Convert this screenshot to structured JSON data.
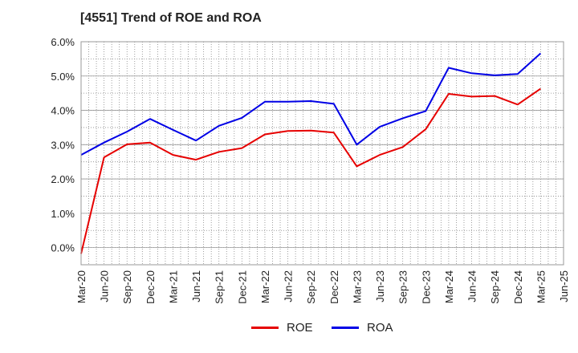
{
  "title": "[4551]  Trend of ROE and ROA",
  "chart_data": {
    "type": "line",
    "title": "[4551]  Trend of ROE and ROA",
    "x": [
      "Mar-20",
      "Jun-20",
      "Sep-20",
      "Dec-20",
      "Mar-21",
      "Jun-21",
      "Sep-21",
      "Dec-21",
      "Mar-22",
      "Jun-22",
      "Sep-22",
      "Dec-22",
      "Mar-23",
      "Jun-23",
      "Sep-23",
      "Dec-23",
      "Mar-24",
      "Jun-24",
      "Sep-24",
      "Dec-24",
      "Mar-25",
      "Jun-25"
    ],
    "ylim": [
      -0.5,
      6.0
    ],
    "yticks": [
      "0.0%",
      "1.0%",
      "2.0%",
      "3.0%",
      "4.0%",
      "5.0%",
      "6.0%"
    ],
    "ytick_values": [
      0,
      1,
      2,
      3,
      4,
      5,
      6
    ],
    "grid": true,
    "legend_position": "bottom",
    "series": [
      {
        "name": "ROE",
        "color": "#e60000",
        "values": [
          -0.18,
          2.63,
          3.01,
          3.06,
          2.7,
          2.56,
          2.79,
          2.9,
          3.3,
          3.4,
          3.41,
          3.35,
          2.37,
          2.7,
          2.93,
          3.45,
          4.48,
          4.4,
          4.42,
          4.17,
          4.63,
          null
        ]
      },
      {
        "name": "ROA",
        "color": "#0000e6",
        "values": [
          2.7,
          3.06,
          3.38,
          3.75,
          3.43,
          3.12,
          3.55,
          3.78,
          4.25,
          4.25,
          4.27,
          4.19,
          3.0,
          3.52,
          3.77,
          3.98,
          5.24,
          5.08,
          5.02,
          5.06,
          5.66,
          null
        ]
      }
    ]
  }
}
